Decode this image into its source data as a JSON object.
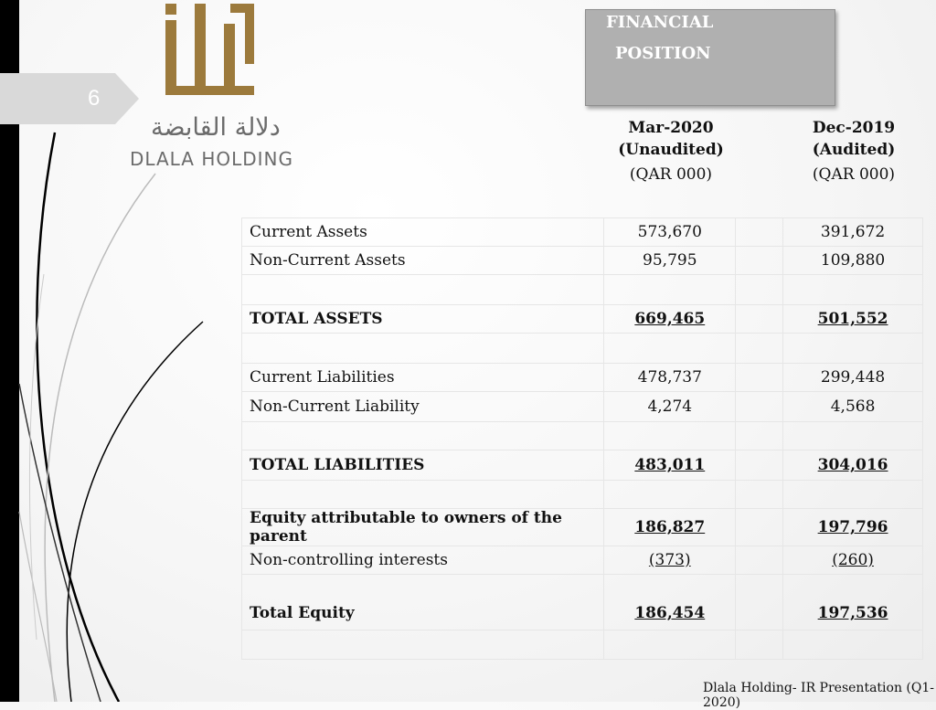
{
  "slide": {
    "number": "6"
  },
  "logo": {
    "arabic": "دلالة القابضة",
    "english": "DLALA HOLDING"
  },
  "title": {
    "line1": "FINANCIAL",
    "line2": "POSITION"
  },
  "columns": [
    {
      "period": "Mar-2020",
      "status": "(Unaudited)",
      "unit": "(QAR 000)"
    },
    {
      "period": "Dec-2019",
      "status": "(Audited)",
      "unit": "(QAR 000)"
    }
  ],
  "rows": [
    {
      "label": "Current Assets",
      "v1": "573,670",
      "v2": "391,672"
    },
    {
      "label": "Non-Current Assets",
      "v1": "95,795",
      "v2": "109,880"
    },
    {
      "label": "TOTAL ASSETS",
      "v1": "669,465",
      "v2": "501,552"
    },
    {
      "label": "Current Liabilities",
      "v1": "478,737",
      "v2": "299,448"
    },
    {
      "label": "Non-Current Liability",
      "v1": "4,274",
      "v2": "4,568"
    },
    {
      "label": "TOTAL LIABILITIES",
      "v1": "483,011",
      "v2": "304,016"
    },
    {
      "label": "Equity attributable to owners of the parent",
      "v1": "186,827",
      "v2": "197,796"
    },
    {
      "label": "Non-controlling interests",
      "v1": "(373)",
      "v2": "(260)"
    },
    {
      "label": "Total Equity",
      "v1": "186,454",
      "v2": "197,536"
    }
  ],
  "footer": "Dlala Holding- IR Presentation (Q1-2020)",
  "colors": {
    "gold": "#9c7a3c",
    "grey_box": "#b0b0b0"
  }
}
